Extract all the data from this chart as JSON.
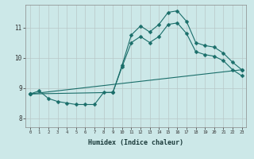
{
  "xlabel": "Humidex (Indice chaleur)",
  "bg_color": "#cce8e8",
  "line_color": "#1a6e6a",
  "grid_color": "#b8c8c8",
  "xlim": [
    -0.5,
    23.5
  ],
  "ylim": [
    7.7,
    11.75
  ],
  "yticks": [
    8,
    9,
    10,
    11
  ],
  "xticks": [
    0,
    1,
    2,
    3,
    4,
    5,
    6,
    7,
    8,
    9,
    10,
    11,
    12,
    13,
    14,
    15,
    16,
    17,
    18,
    19,
    20,
    21,
    22,
    23
  ],
  "line1_x": [
    0,
    1,
    2,
    3,
    4,
    5,
    6,
    7,
    8,
    9,
    10,
    11,
    12,
    13,
    14,
    15,
    16,
    17,
    18,
    19,
    20,
    21,
    22,
    23
  ],
  "line1_y": [
    8.8,
    8.9,
    8.65,
    8.55,
    8.5,
    8.45,
    8.45,
    8.45,
    8.85,
    8.85,
    9.75,
    10.75,
    11.05,
    10.85,
    11.1,
    11.5,
    11.55,
    11.2,
    10.5,
    10.4,
    10.35,
    10.15,
    9.85,
    9.6
  ],
  "line2_x": [
    0,
    23
  ],
  "line2_y": [
    8.8,
    9.6
  ],
  "line3_x": [
    0,
    9,
    10,
    11,
    12,
    13,
    14,
    15,
    16,
    17,
    18,
    19,
    20,
    21,
    22,
    23
  ],
  "line3_y": [
    8.8,
    8.85,
    9.7,
    10.5,
    10.7,
    10.5,
    10.7,
    11.1,
    11.15,
    10.8,
    10.2,
    10.1,
    10.05,
    9.9,
    9.6,
    9.4
  ],
  "marker_size": 2.5
}
